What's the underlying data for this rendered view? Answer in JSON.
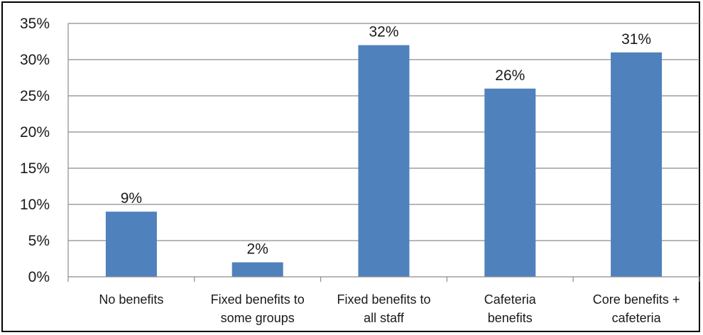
{
  "chart_data": {
    "type": "bar",
    "title": "",
    "xlabel": "",
    "ylabel": "",
    "categories": [
      [
        "No benefits"
      ],
      [
        "Fixed benefits to",
        "some groups"
      ],
      [
        "Fixed benefits to",
        "all staff"
      ],
      [
        "Cafeteria",
        "benefits"
      ],
      [
        "Core benefits +",
        "cafeteria"
      ]
    ],
    "values": [
      9,
      2,
      32,
      26,
      31
    ],
    "data_labels": [
      "9%",
      "2%",
      "32%",
      "26%",
      "31%"
    ],
    "ylim": [
      0,
      35
    ],
    "yticks": [
      0,
      5,
      10,
      15,
      20,
      25,
      30,
      35
    ],
    "ytick_labels": [
      "0%",
      "5%",
      "10%",
      "15%",
      "20%",
      "25%",
      "30%",
      "35%"
    ],
    "grid": true,
    "legend": "none",
    "bar_color": "#4f81bd",
    "grid_color": "#8c8c8c"
  }
}
